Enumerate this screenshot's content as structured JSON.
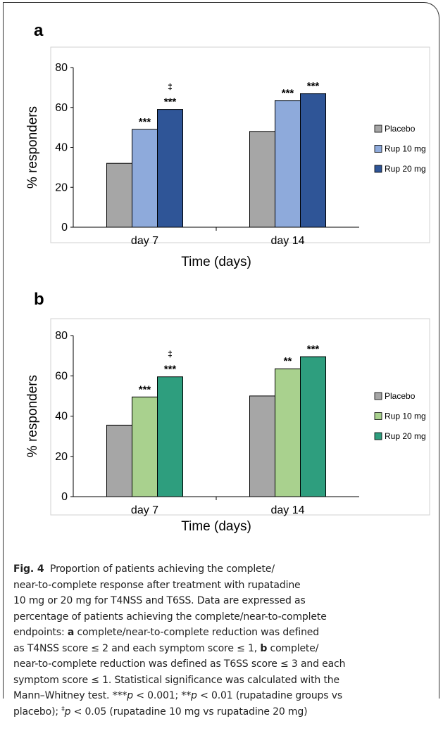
{
  "chart_data": [
    {
      "type": "bar",
      "panel_label": "a",
      "categories": [
        "day 7",
        "day 14"
      ],
      "series": [
        {
          "name": "Placebo",
          "values": [
            32,
            48
          ],
          "color": "#a6a6a6"
        },
        {
          "name": "Rup 10 mg",
          "values": [
            49,
            63.5
          ],
          "color": "#8eaadb"
        },
        {
          "name": "Rup 20 mg",
          "values": [
            59,
            67
          ],
          "color": "#2f5597"
        }
      ],
      "annotations": [
        [
          "",
          "***",
          "‡\n***"
        ],
        [
          "",
          "***",
          "***"
        ]
      ],
      "xlabel": "Time (days)",
      "ylabel": "% responders",
      "ylim": [
        0,
        80
      ],
      "yticks": [
        "0",
        "20",
        "40",
        "60",
        "80"
      ],
      "grid": false,
      "legend_position": "right"
    },
    {
      "type": "bar",
      "panel_label": "b",
      "categories": [
        "day 7",
        "day 14"
      ],
      "series": [
        {
          "name": "Placebo",
          "values": [
            35.5,
            50
          ],
          "color": "#a6a6a6"
        },
        {
          "name": "Rup 10 mg",
          "values": [
            49.5,
            63.5
          ],
          "color": "#a9d18e"
        },
        {
          "name": "Rup 20 mg",
          "values": [
            59.5,
            69.5
          ],
          "color": "#2e9e7e"
        }
      ],
      "annotations": [
        [
          "",
          "***",
          "‡\n***"
        ],
        [
          "",
          "**",
          "***"
        ]
      ],
      "xlabel": "Time (days)",
      "ylabel": "% responders",
      "ylim": [
        0,
        80
      ],
      "yticks": [
        "0",
        "20",
        "40",
        "60",
        "80"
      ],
      "grid": false,
      "legend_position": "right"
    }
  ],
  "caption": {
    "fig_label": "Fig. 4",
    "text": "Proportion of patients achieving the complete/ near-to-complete response after treatment with rupatadine 10 mg or 20 mg for T4NSS and T6SS. Data are expressed as percentage of patients achieving the complete/near-to-complete endpoints: a complete/near-to-complete reduction was defined as T4NSS score ≤ 2 and each symptom score ≤ 1, b complete/ near-to-complete reduction was defined as T6SS score ≤ 3 and each symptom score ≤ 1. Statistical significance was calculated with the Mann–Whitney test. ***p < 0.001; **p < 0.01 (rupatadine groups vs placebo); ‡p < 0.05 (rupatadine 10 mg vs rupatadine 20 mg)",
    "lines": [
      "Proportion of patients achieving the complete/",
      "near-to-complete response after treatment with rupatadine",
      "10 mg or 20 mg for T4NSS and T6SS. Data are expressed as",
      "percentage of patients achieving the complete/near-to-complete",
      "endpoints: a complete/near-to-complete reduction was defined",
      "as T4NSS score ≤ 2 and each symptom score ≤ 1, b complete/",
      "near-to-complete reduction was defined as T6SS score ≤ 3 and each",
      "symptom score ≤ 1. Statistical significance was calculated with the",
      "Mann–Whitney test. ***p < 0.001; **p < 0.01 (rupatadine groups vs",
      "placebo); ‡p < 0.05 (rupatadine 10 mg vs rupatadine 20 mg)"
    ]
  }
}
